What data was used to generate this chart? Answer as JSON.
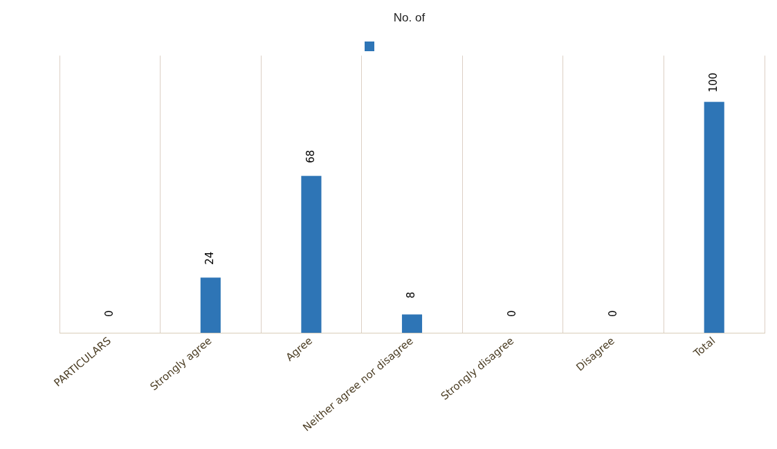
{
  "chart_data": {
    "type": "bar",
    "title": "No. of",
    "categories": [
      "PARTICULARS",
      "Strongly agree",
      "Agree",
      "Neither agree nor disagree",
      "Strongly disagree",
      "Disagree",
      "Total"
    ],
    "series": [
      {
        "color": "#2e75b6",
        "values": [
          0,
          24,
          68,
          8,
          0,
          0,
          100
        ]
      }
    ],
    "data_labels": true,
    "relative": false,
    "grid": "x"
  }
}
